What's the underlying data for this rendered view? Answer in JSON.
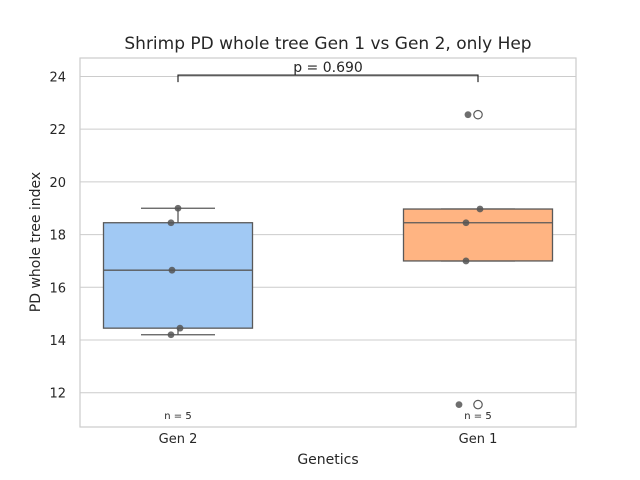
{
  "chart_data": {
    "type": "box",
    "title": "Shrimp PD whole tree Gen 1 vs Gen 2, only Hep",
    "xlabel": "Genetics",
    "ylabel": "PD whole tree index",
    "categories": [
      "Gen 2",
      "Gen 1"
    ],
    "ylim": [
      10.7,
      24.7
    ],
    "yticks": [
      "12",
      "14",
      "16",
      "18",
      "20",
      "22",
      "24"
    ],
    "grid": true,
    "colors": {
      "box": [
        "#a1c9f4",
        "#ffb482"
      ],
      "line": "#595959",
      "grid": "#cccccc",
      "point": "#555555"
    },
    "boxes": [
      {
        "category": "Gen 2",
        "whisker_low": 14.2,
        "q1": 14.45,
        "median": 16.65,
        "q3": 18.45,
        "whisker_high": 19.0,
        "outliers": []
      },
      {
        "category": "Gen 1",
        "whisker_low": 17.0,
        "q1": 17.0,
        "median": 18.45,
        "q3": 18.97,
        "whisker_high": 18.97,
        "outliers": [
          22.55,
          11.55
        ]
      }
    ],
    "points": [
      {
        "category": "Gen 2",
        "values": [
          19.0,
          18.45,
          16.65,
          14.45,
          14.2
        ]
      },
      {
        "category": "Gen 1",
        "values": [
          22.55,
          18.97,
          18.45,
          17.0,
          11.55
        ]
      }
    ],
    "n_labels": [
      "n = 5",
      "n = 5"
    ],
    "annotation": {
      "text": "p = 0.690",
      "y": 24.05
    }
  }
}
